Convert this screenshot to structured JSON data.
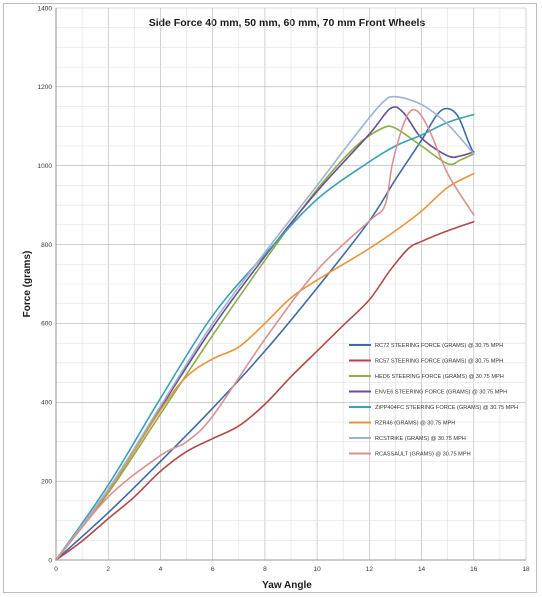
{
  "chart_data": {
    "type": "line",
    "title": "Side Force 40 mm, 50 mm, 60 mm, 70 mm Front Wheels",
    "xlabel": "Yaw Angle",
    "ylabel": "Force (grams)",
    "xlim": [
      0,
      18
    ],
    "ylim": [
      0,
      1400
    ],
    "xticks": [
      0,
      2,
      4,
      6,
      8,
      10,
      12,
      14,
      16,
      18
    ],
    "yticks": [
      0,
      200,
      400,
      600,
      800,
      1000,
      1200,
      1400
    ],
    "grid": true,
    "legend_position": "right",
    "series": [
      {
        "name": "RC72 STEERING FORCE (GRAMS) @ 30.75 MPH",
        "color": "#3e6aa6",
        "points": [
          [
            0,
            0
          ],
          [
            2,
            120
          ],
          [
            4,
            250
          ],
          [
            6,
            385
          ],
          [
            8,
            530
          ],
          [
            10,
            690
          ],
          [
            12,
            860
          ],
          [
            13,
            965
          ],
          [
            14,
            1065
          ],
          [
            14.6,
            1130
          ],
          [
            15,
            1145
          ],
          [
            15.4,
            1125
          ],
          [
            15.8,
            1060
          ],
          [
            16,
            1030
          ]
        ]
      },
      {
        "name": "RC57 STEERING FORCE (GRAMS) @ 30.75 MPH",
        "color": "#b04a46",
        "points": [
          [
            0,
            0
          ],
          [
            1,
            48
          ],
          [
            2,
            105
          ],
          [
            3,
            160
          ],
          [
            4,
            225
          ],
          [
            5,
            275
          ],
          [
            6,
            308
          ],
          [
            7,
            340
          ],
          [
            8,
            395
          ],
          [
            9,
            465
          ],
          [
            10,
            530
          ],
          [
            11,
            595
          ],
          [
            12,
            660
          ],
          [
            12.8,
            735
          ],
          [
            13.5,
            790
          ],
          [
            14,
            808
          ],
          [
            15,
            835
          ],
          [
            16,
            858
          ]
        ]
      },
      {
        "name": "HED6 STEERING FORCE (GRAMS) @ 30.75 MPH",
        "color": "#8dad48",
        "points": [
          [
            0,
            0
          ],
          [
            2,
            170
          ],
          [
            4,
            370
          ],
          [
            6,
            570
          ],
          [
            8,
            760
          ],
          [
            10,
            940
          ],
          [
            11.5,
            1050
          ],
          [
            12.5,
            1095
          ],
          [
            13,
            1095
          ],
          [
            14,
            1050
          ],
          [
            15,
            1005
          ],
          [
            15.5,
            1015
          ],
          [
            16,
            1030
          ]
        ]
      },
      {
        "name": "ENVE6 STEERING FORCE (GRAMS) @ 30.75 MPH",
        "color": "#6a4f8f",
        "points": [
          [
            0,
            0
          ],
          [
            2,
            175
          ],
          [
            4,
            385
          ],
          [
            6,
            590
          ],
          [
            8,
            770
          ],
          [
            10,
            935
          ],
          [
            12,
            1080
          ],
          [
            12.8,
            1145
          ],
          [
            13.3,
            1135
          ],
          [
            14,
            1070
          ],
          [
            15,
            1025
          ],
          [
            15.5,
            1025
          ],
          [
            16,
            1035
          ]
        ]
      },
      {
        "name": "ZIPP404FC STEERING FORCE (GRAMS) @ 30.75 MPH",
        "color": "#3ca0b3",
        "points": [
          [
            0,
            0
          ],
          [
            2,
            190
          ],
          [
            4,
            410
          ],
          [
            6,
            620
          ],
          [
            8,
            775
          ],
          [
            10,
            915
          ],
          [
            12,
            1010
          ],
          [
            13,
            1050
          ],
          [
            14,
            1078
          ],
          [
            15,
            1110
          ],
          [
            16,
            1130
          ]
        ]
      },
      {
        "name": "RZR46 (GRAMS) @ 30.75 MPH",
        "color": "#e8943a",
        "points": [
          [
            0,
            0
          ],
          [
            2,
            175
          ],
          [
            4,
            380
          ],
          [
            5,
            465
          ],
          [
            6,
            510
          ],
          [
            7,
            540
          ],
          [
            8,
            600
          ],
          [
            9,
            665
          ],
          [
            10,
            710
          ],
          [
            11,
            750
          ],
          [
            12,
            790
          ],
          [
            13,
            835
          ],
          [
            14,
            885
          ],
          [
            15,
            945
          ],
          [
            16,
            980
          ]
        ]
      },
      {
        "name": "RCSTRIKE (GRAMS) @ 30.75 MPH",
        "color": "#9fb2d4",
        "points": [
          [
            0,
            0
          ],
          [
            2,
            180
          ],
          [
            4,
            390
          ],
          [
            6,
            600
          ],
          [
            8,
            780
          ],
          [
            10,
            950
          ],
          [
            11.5,
            1080
          ],
          [
            12.5,
            1160
          ],
          [
            13,
            1175
          ],
          [
            14,
            1155
          ],
          [
            15,
            1105
          ],
          [
            16,
            1030
          ]
        ]
      },
      {
        "name": "RCASSAULT (GRAMS) @ 30.75 MPH",
        "color": "#d99193",
        "points": [
          [
            0,
            0
          ],
          [
            2,
            160
          ],
          [
            4,
            265
          ],
          [
            5,
            300
          ],
          [
            6,
            365
          ],
          [
            8,
            560
          ],
          [
            10,
            735
          ],
          [
            12,
            860
          ],
          [
            12.6,
            900
          ],
          [
            12.9,
            1010
          ],
          [
            13.4,
            1120
          ],
          [
            13.8,
            1140
          ],
          [
            14.3,
            1090
          ],
          [
            15,
            980
          ],
          [
            16,
            875
          ]
        ]
      }
    ]
  }
}
